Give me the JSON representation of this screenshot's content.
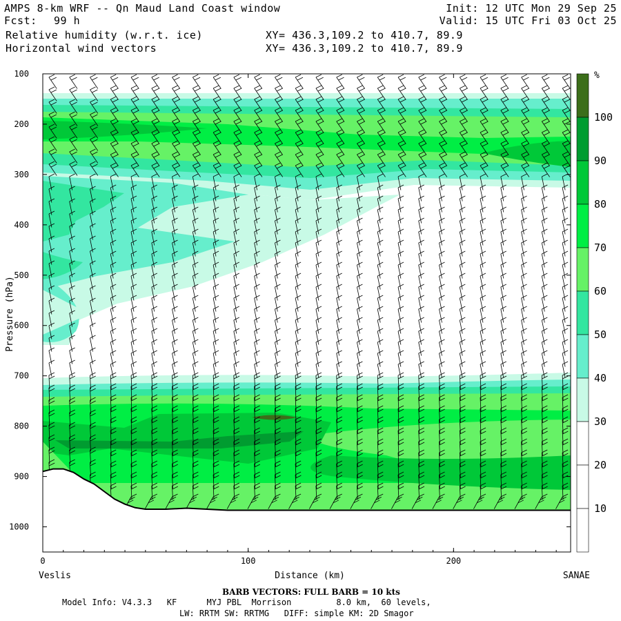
{
  "header": {
    "title": "AMPS 8-km WRF -- Qn Maud Land Coast window",
    "fcst_label": "Fcst:",
    "fcst_value": "99 h",
    "init": "Init: 12 UTC Mon 29 Sep 25",
    "valid": "Valid: 15 UTC Fri 03 Oct 25",
    "field1": "Relative humidity (w.r.t. ice)",
    "field2": "Horizontal wind vectors",
    "xy1": "XY= 436.3,109.2 to 410.7, 89.9",
    "xy2": "XY= 436.3,109.2 to 410.7, 89.9"
  },
  "footer": {
    "barb_note": "BARB VECTORS:  FULL BARB = 10 kts",
    "model_info": "Model Info: V4.3.3   KF      MYJ PBL  Morrison         8.0 km,  60 levels,",
    "model_info2": "LW: RRTM SW: RRTMG   DIFF: simple KM: 2D Smagor"
  },
  "chart_data": {
    "type": "heatmap",
    "title": "Relative humidity (w.r.t. ice)",
    "overlay": "Horizontal wind vectors",
    "xlabel": "Distance (km)",
    "ylabel": "Pressure (hPa)",
    "xlim": [
      0,
      257
    ],
    "ylim": [
      1050,
      100
    ],
    "x_ticks": [
      0,
      100,
      200
    ],
    "y_ticks": [
      100,
      200,
      300,
      400,
      500,
      600,
      700,
      800,
      900,
      1000
    ],
    "x_endpoints": {
      "left": "Veslis",
      "right": "SANAE"
    },
    "colorbar": {
      "unit": "%",
      "levels": [
        10,
        20,
        30,
        40,
        50,
        60,
        70,
        80,
        90,
        100
      ],
      "colors": [
        "#ffffff",
        "#ffffff",
        "#ffffff",
        "#c8fae6",
        "#66eecc",
        "#33e6a0",
        "#66f266",
        "#00ee44",
        "#00c838",
        "#009c30",
        "#3c6e1a"
      ]
    },
    "terrain": {
      "x_km": [
        0,
        5,
        10,
        15,
        20,
        25,
        30,
        35,
        40,
        45,
        50,
        60,
        70,
        80,
        90,
        100,
        120,
        150,
        200,
        257
      ],
      "pressure_hPa": [
        890,
        885,
        885,
        892,
        905,
        915,
        930,
        945,
        955,
        962,
        965,
        965,
        963,
        965,
        967,
        967,
        967,
        967,
        967,
        967
      ]
    },
    "barb_columns_km": [
      3,
      13,
      23,
      33,
      43,
      53,
      63,
      73,
      83,
      93,
      103,
      113,
      123,
      133,
      143,
      153,
      163,
      173,
      183,
      193,
      203,
      213,
      223,
      233,
      243,
      253
    ]
  }
}
